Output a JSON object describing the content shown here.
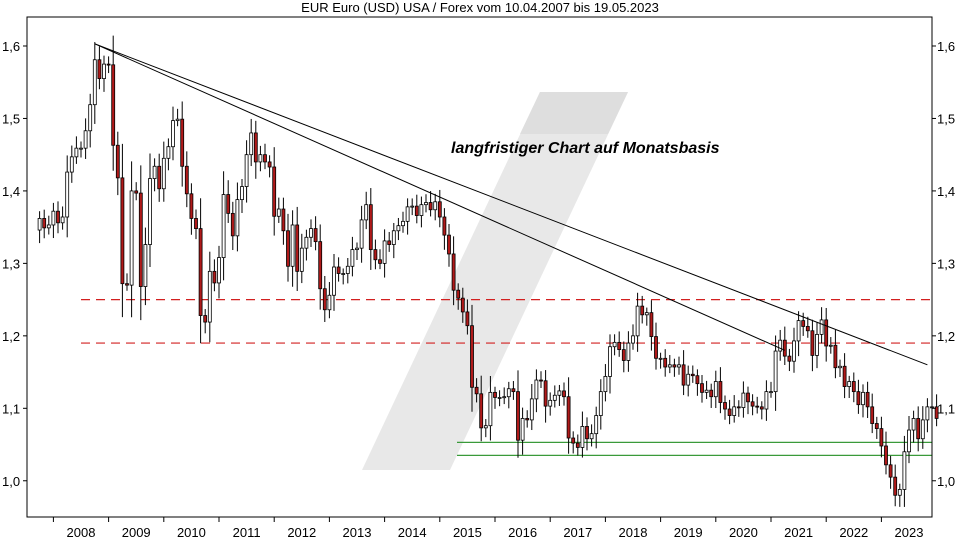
{
  "chart_data": {
    "type": "candlestick",
    "title": "EUR Euro (USD) USA / Forex vom 10.04.2007 bis 19.05.2023",
    "annotation": "langfristiger Chart auf Monatsbasis",
    "period": "monthly",
    "x_tick_labels": [
      "2008",
      "2009",
      "2010",
      "2011",
      "2012",
      "2013",
      "2014",
      "2015",
      "2016",
      "2017",
      "2018",
      "2019",
      "2020",
      "2021",
      "2022",
      "2023"
    ],
    "y_tick_labels": [
      "1,0",
      "1,1",
      "1,2",
      "1,3",
      "1,4",
      "1,5",
      "1,6"
    ],
    "ylim": [
      0.95,
      1.64
    ],
    "y_ticks": [
      1.0,
      1.1,
      1.2,
      1.3,
      1.4,
      1.5,
      1.6
    ],
    "grid": false,
    "colors": {
      "up": "#ffffff",
      "down": "#b01a1a",
      "outline": "#000000",
      "resistance": "#d22020",
      "support": "#3a9a3a",
      "trend": "#000000",
      "watermark": "#e8e8e8"
    },
    "closes": [
      1.362,
      1.349,
      1.353,
      1.372,
      1.356,
      1.364,
      1.426,
      1.447,
      1.459,
      1.459,
      1.483,
      1.519,
      1.581,
      1.555,
      1.575,
      1.574,
      1.463,
      1.418,
      1.272,
      1.27,
      1.4,
      1.397,
      1.268,
      1.326,
      1.417,
      1.434,
      1.403,
      1.445,
      1.461,
      1.497,
      1.499,
      1.434,
      1.396,
      1.362,
      1.348,
      1.228,
      1.219,
      1.289,
      1.273,
      1.308,
      1.395,
      1.369,
      1.338,
      1.388,
      1.406,
      1.45,
      1.48,
      1.44,
      1.45,
      1.44,
      1.433,
      1.365,
      1.375,
      1.345,
      1.296,
      1.353,
      1.289,
      1.321,
      1.336,
      1.348,
      1.33,
      1.265,
      1.236,
      1.256,
      1.295,
      1.286,
      1.286,
      1.296,
      1.319,
      1.321,
      1.36,
      1.381,
      1.319,
      1.305,
      1.3,
      1.331,
      1.326,
      1.345,
      1.352,
      1.358,
      1.378,
      1.379,
      1.366,
      1.381,
      1.384,
      1.374,
      1.385,
      1.364,
      1.339,
      1.313,
      1.263,
      1.252,
      1.233,
      1.214,
      1.129,
      1.12,
      1.073,
      1.076,
      1.122,
      1.115,
      1.115,
      1.116,
      1.127,
      1.123,
      1.056,
      1.086,
      1.084,
      1.113,
      1.139,
      1.138,
      1.103,
      1.111,
      1.118,
      1.124,
      1.116,
      1.059,
      1.052,
      1.046,
      1.075,
      1.058,
      1.065,
      1.09,
      1.123,
      1.144,
      1.185,
      1.191,
      1.181,
      1.166,
      1.19,
      1.2,
      1.241,
      1.229,
      1.232,
      1.199,
      1.169,
      1.169,
      1.157,
      1.16,
      1.157,
      1.16,
      1.132,
      1.147,
      1.145,
      1.134,
      1.122,
      1.125,
      1.116,
      1.137,
      1.108,
      1.099,
      1.09,
      1.102,
      1.101,
      1.121,
      1.109,
      1.103,
      1.102,
      1.099,
      1.123,
      1.123,
      1.179,
      1.194,
      1.172,
      1.165,
      1.193,
      1.221,
      1.213,
      1.207,
      1.173,
      1.202,
      1.222,
      1.186,
      1.187,
      1.156,
      1.158,
      1.13,
      1.137,
      1.123,
      1.105,
      1.122,
      1.102,
      1.079,
      1.072,
      1.048,
      1.022,
      1.005,
      0.98,
      0.988,
      1.04,
      1.07,
      1.086,
      1.058,
      1.084,
      1.102,
      1.102,
      1.086
    ],
    "first_open": 1.346,
    "support_levels": [
      1.053,
      1.035
    ],
    "resistance_levels": [
      1.25,
      1.19
    ],
    "trendlines": [
      {
        "from": [
          "2008-04",
          1.603
        ],
        "to": [
          "2023-05",
          1.16
        ]
      },
      {
        "from": [
          "2008-04",
          1.603
        ],
        "to": [
          "2020-10",
          1.18
        ]
      }
    ]
  }
}
